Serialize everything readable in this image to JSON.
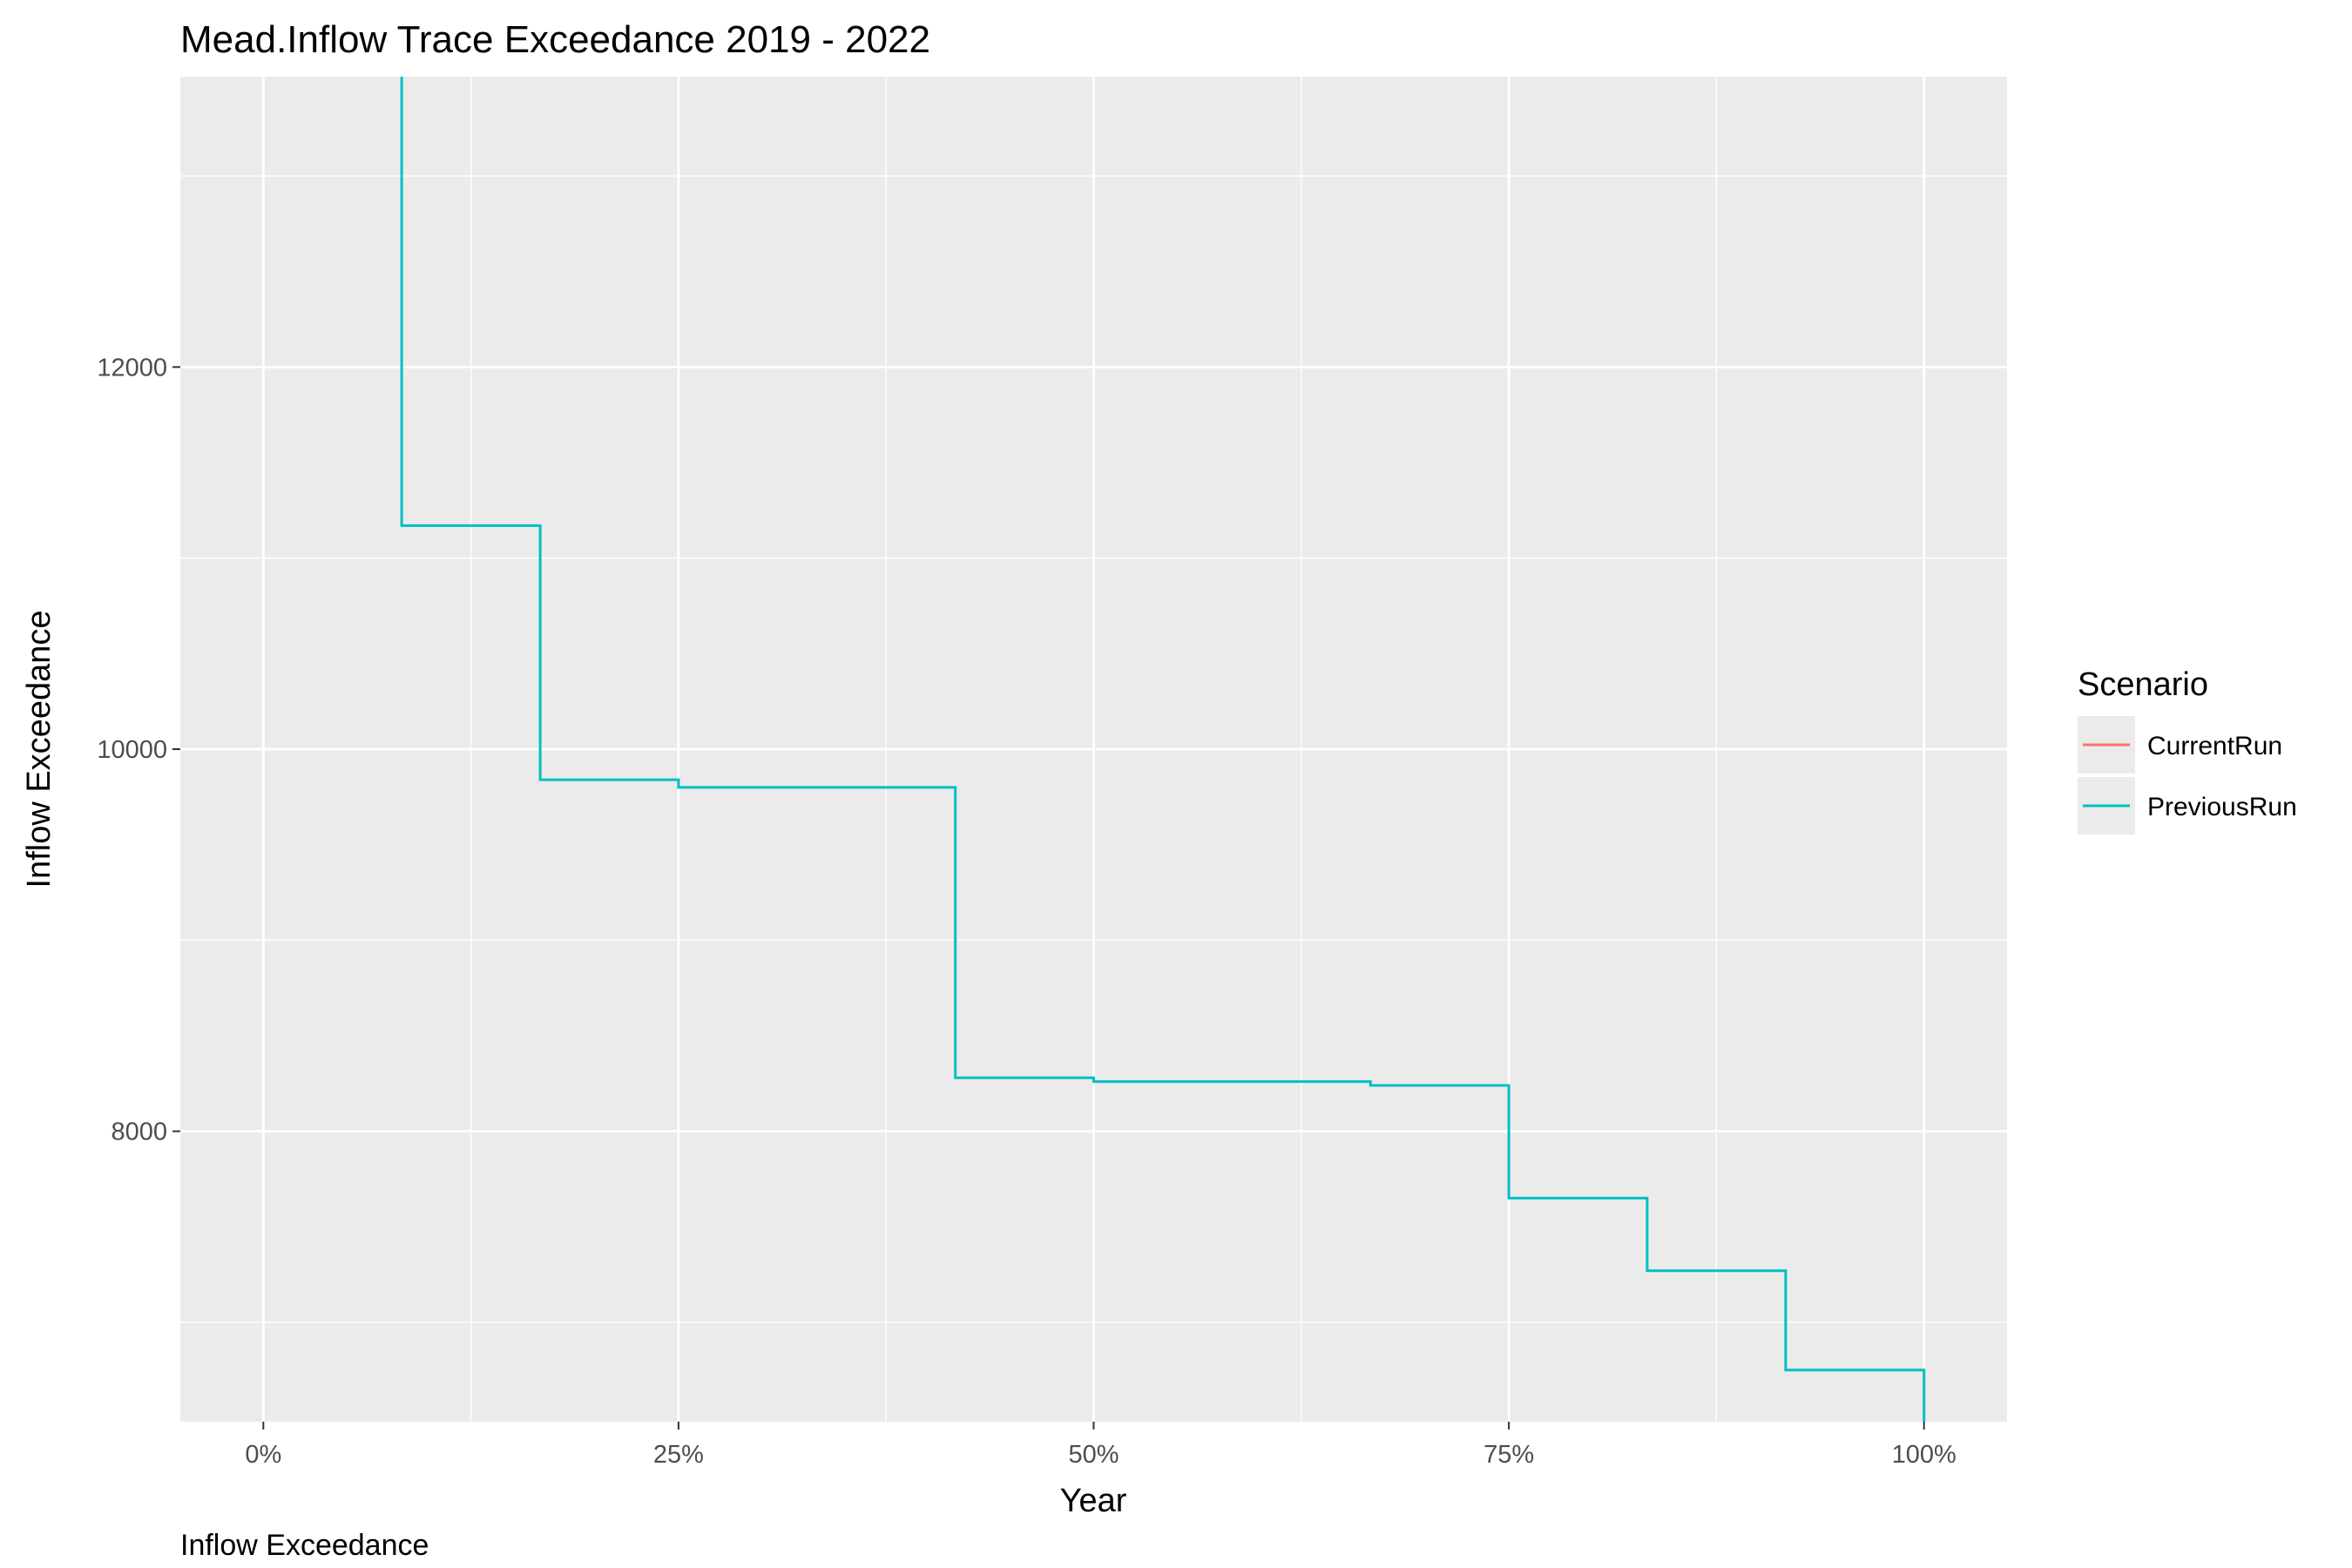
{
  "chart_data": {
    "type": "line",
    "title": "Mead.Inflow Trace Exceedance 2019 - 2022",
    "xlabel": "Year",
    "ylabel": "Inflow Exceedance",
    "caption": "Inflow Exceedance",
    "x_tick_labels": [
      "0%",
      "25%",
      "50%",
      "75%",
      "100%"
    ],
    "x_ticks": [
      0,
      0.25,
      0.5,
      0.75,
      1.0
    ],
    "y_tick_labels": [
      "8000",
      "10000",
      "12000"
    ],
    "y_ticks": [
      8000,
      10000,
      12000
    ],
    "xlim": [
      -0.05,
      1.05
    ],
    "ylim": [
      6480,
      13520
    ],
    "grid": true,
    "legend": {
      "title": "Scenario",
      "position": "right",
      "entries": [
        "CurrentRun",
        "PreviousRun"
      ]
    },
    "series": [
      {
        "name": "CurrentRun",
        "color": "#f8766d",
        "visible": false,
        "x": [],
        "y": []
      },
      {
        "name": "PreviousRun",
        "color": "#00bfc4",
        "step": "hv",
        "x": [
          0,
          0.0833,
          0.1667,
          0.25,
          0.4167,
          0.5,
          0.6667,
          0.75,
          0.8333,
          0.9167,
          1.0
        ],
        "y": [
          13550,
          11170,
          9840,
          9800,
          8280,
          8260,
          8240,
          7650,
          7270,
          6750,
          6480
        ]
      }
    ]
  }
}
